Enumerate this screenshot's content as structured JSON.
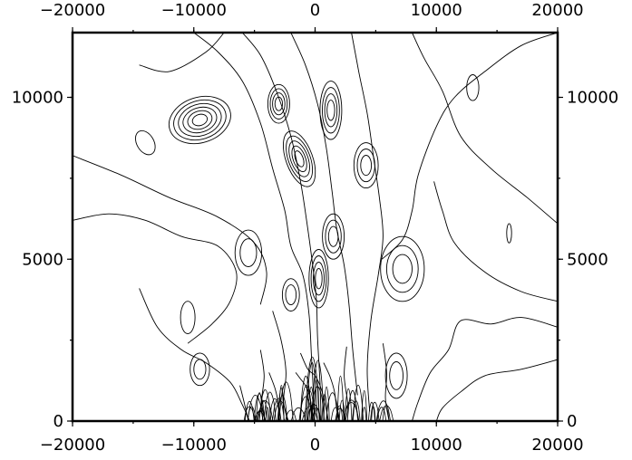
{
  "chart_data": {
    "type": "contour",
    "title": "",
    "xlabel": "",
    "ylabel": "",
    "xlim": [
      -20000,
      20000
    ],
    "ylim": [
      0,
      12000
    ],
    "grid": false,
    "line_color": "#000000",
    "frame_color": "#000000",
    "background": "#ffffff",
    "x_ticks": [
      {
        "value": -20000,
        "label": "−20000"
      },
      {
        "value": -10000,
        "label": "−10000"
      },
      {
        "value": 0,
        "label": "0"
      },
      {
        "value": 10000,
        "label": "10000"
      },
      {
        "value": 20000,
        "label": "20000"
      }
    ],
    "y_ticks": [
      {
        "value": 0,
        "label": "0"
      },
      {
        "value": 5000,
        "label": "5000"
      },
      {
        "value": 10000,
        "label": "10000"
      }
    ],
    "tick_label_sides": [
      "top",
      "bottom",
      "left",
      "right"
    ],
    "contour_features": [
      {
        "kind": "closed",
        "cx": -9500,
        "cy": 9300,
        "rx": 2600,
        "ry": 700,
        "rings": 6,
        "angle": -18
      },
      {
        "kind": "closed",
        "cx": -3000,
        "cy": 9800,
        "rx": 900,
        "ry": 600,
        "rings": 4,
        "angle": 0
      },
      {
        "kind": "closed",
        "cx": 1300,
        "cy": 9600,
        "rx": 900,
        "ry": 900,
        "rings": 4,
        "angle": 0
      },
      {
        "kind": "closed",
        "cx": -1300,
        "cy": 8100,
        "rx": 1100,
        "ry": 900,
        "rings": 5,
        "angle": -20
      },
      {
        "kind": "closed",
        "cx": 4200,
        "cy": 7900,
        "rx": 1000,
        "ry": 700,
        "rings": 3,
        "angle": 0
      },
      {
        "kind": "closed",
        "cx": 1500,
        "cy": 5700,
        "rx": 900,
        "ry": 700,
        "rings": 3,
        "angle": 0
      },
      {
        "kind": "closed",
        "cx": -5500,
        "cy": 5200,
        "rx": 1100,
        "ry": 700,
        "rings": 2,
        "angle": 0
      },
      {
        "kind": "closed",
        "cx": 7200,
        "cy": 4700,
        "rx": 1800,
        "ry": 1000,
        "rings": 3,
        "angle": 0
      },
      {
        "kind": "closed",
        "cx": 300,
        "cy": 4400,
        "rx": 800,
        "ry": 900,
        "rings": 4,
        "angle": 0
      },
      {
        "kind": "closed",
        "cx": -2000,
        "cy": 3900,
        "rx": 700,
        "ry": 500,
        "rings": 2,
        "angle": 0
      },
      {
        "kind": "closed",
        "cx": 6700,
        "cy": 1400,
        "rx": 900,
        "ry": 700,
        "rings": 2,
        "angle": 0
      },
      {
        "kind": "closed",
        "cx": -9500,
        "cy": 1600,
        "rx": 800,
        "ry": 500,
        "rings": 2,
        "angle": 0
      },
      {
        "kind": "closed",
        "cx": 16000,
        "cy": 5800,
        "rx": 200,
        "ry": 300,
        "rings": 1,
        "angle": 0
      },
      {
        "kind": "closed",
        "cx": -14000,
        "cy": 8600,
        "rx": 700,
        "ry": 400,
        "rings": 1,
        "angle": -30
      },
      {
        "kind": "closed",
        "cx": -10500,
        "cy": 3200,
        "rx": 600,
        "ry": 500,
        "rings": 1,
        "angle": 0
      },
      {
        "kind": "closed",
        "cx": 13000,
        "cy": 10300,
        "rx": 500,
        "ry": 400,
        "rings": 1,
        "angle": 0
      }
    ],
    "contour_levels": [
      {
        "pts": [
          [
            -20000,
            8200
          ],
          [
            -16000,
            7600
          ],
          [
            -12000,
            6900
          ],
          [
            -8000,
            6300
          ],
          [
            -5000,
            5500
          ],
          [
            -4000,
            4600
          ],
          [
            -4500,
            3600
          ]
        ]
      },
      {
        "pts": [
          [
            -20000,
            6200
          ],
          [
            -17000,
            6400
          ],
          [
            -14000,
            6200
          ],
          [
            -11000,
            5700
          ],
          [
            -8000,
            5400
          ],
          [
            -6500,
            4600
          ],
          [
            -7000,
            3700
          ],
          [
            -8500,
            3000
          ],
          [
            -10500,
            2400
          ]
        ]
      },
      {
        "pts": [
          [
            -14500,
            4100
          ],
          [
            -13000,
            2900
          ],
          [
            -11000,
            2200
          ],
          [
            -9000,
            1800
          ],
          [
            -7000,
            1200
          ],
          [
            -6000,
            500
          ],
          [
            -5400,
            0
          ]
        ]
      },
      {
        "pts": [
          [
            20000,
            12000
          ],
          [
            17000,
            11600
          ],
          [
            14000,
            10800
          ],
          [
            11500,
            10000
          ],
          [
            10000,
            9100
          ],
          [
            8500,
            7600
          ],
          [
            8000,
            6500
          ],
          [
            7200,
            5600
          ],
          [
            5500,
            5000
          ]
        ]
      },
      {
        "pts": [
          [
            20000,
            6100
          ],
          [
            17500,
            6900
          ],
          [
            14500,
            7800
          ],
          [
            12000,
            8800
          ],
          [
            10500,
            10200
          ],
          [
            9000,
            11200
          ],
          [
            8000,
            12000
          ]
        ]
      },
      {
        "pts": [
          [
            20000,
            3700
          ],
          [
            17000,
            4000
          ],
          [
            14000,
            4600
          ],
          [
            11500,
            5500
          ],
          [
            10500,
            6500
          ],
          [
            9800,
            7400
          ]
        ]
      },
      {
        "pts": [
          [
            20000,
            2900
          ],
          [
            17000,
            3200
          ],
          [
            14500,
            3000
          ],
          [
            12000,
            3100
          ],
          [
            11000,
            2200
          ],
          [
            9500,
            1500
          ],
          [
            8500,
            600
          ],
          [
            8000,
            0
          ]
        ]
      },
      {
        "pts": [
          [
            20000,
            1900
          ],
          [
            17000,
            1600
          ],
          [
            14000,
            1400
          ],
          [
            12000,
            900
          ],
          [
            10500,
            400
          ],
          [
            10000,
            0
          ]
        ]
      },
      {
        "pts": [
          [
            -10000,
            12000
          ],
          [
            -8000,
            11400
          ],
          [
            -6000,
            10500
          ],
          [
            -4500,
            9200
          ],
          [
            -3500,
            7800
          ],
          [
            -2500,
            6500
          ],
          [
            -2000,
            5400
          ],
          [
            -1000,
            4500
          ],
          [
            -500,
            3300
          ],
          [
            -300,
            2000
          ],
          [
            -100,
            600
          ]
        ]
      },
      {
        "pts": [
          [
            -6000,
            12000
          ],
          [
            -4500,
            11300
          ],
          [
            -3200,
            10200
          ],
          [
            -2000,
            8800
          ],
          [
            -1200,
            7400
          ],
          [
            -700,
            6200
          ],
          [
            -300,
            5100
          ],
          [
            100,
            3800
          ],
          [
            200,
            2600
          ],
          [
            400,
            1200
          ],
          [
            500,
            0
          ]
        ]
      },
      {
        "pts": [
          [
            -2000,
            12000
          ],
          [
            -800,
            11000
          ],
          [
            200,
            9800
          ],
          [
            900,
            8500
          ],
          [
            1400,
            7100
          ],
          [
            1800,
            5900
          ],
          [
            2400,
            4800
          ],
          [
            2800,
            3600
          ],
          [
            3100,
            2200
          ],
          [
            3500,
            800
          ]
        ]
      },
      {
        "pts": [
          [
            3000,
            12000
          ],
          [
            3600,
            10800
          ],
          [
            4300,
            9500
          ],
          [
            4800,
            8200
          ],
          [
            5300,
            6900
          ],
          [
            5600,
            5700
          ],
          [
            5200,
            4500
          ],
          [
            4600,
            3100
          ],
          [
            4300,
            1600
          ],
          [
            4500,
            300
          ]
        ]
      },
      {
        "pts": [
          [
            -14500,
            11000
          ],
          [
            -12000,
            10800
          ],
          [
            -9000,
            11400
          ],
          [
            -7500,
            12000
          ]
        ]
      },
      {
        "pts": [
          [
            -3500,
            3400
          ],
          [
            -2800,
            2500
          ],
          [
            -2400,
            1500
          ],
          [
            -2600,
            600
          ],
          [
            -2200,
            0
          ]
        ]
      },
      {
        "pts": [
          [
            -4500,
            2200
          ],
          [
            -4200,
            1400
          ],
          [
            -4400,
            600
          ],
          [
            -4100,
            0
          ]
        ]
      },
      {
        "pts": [
          [
            2600,
            2300
          ],
          [
            2400,
            1400
          ],
          [
            2700,
            500
          ],
          [
            2500,
            0
          ]
        ]
      },
      {
        "pts": [
          [
            5600,
            2400
          ],
          [
            5900,
            1500
          ],
          [
            5800,
            700
          ],
          [
            6100,
            0
          ]
        ]
      },
      {
        "pts": [
          [
            -6200,
            1100
          ],
          [
            -5800,
            500
          ],
          [
            -5500,
            0
          ]
        ]
      },
      {
        "pts": [
          [
            -1600,
            1500
          ],
          [
            -1200,
            1300
          ],
          [
            -800,
            1100
          ],
          [
            -400,
            700
          ],
          [
            -200,
            0
          ]
        ]
      },
      {
        "pts": [
          [
            -1200,
            2100
          ],
          [
            -600,
            1600
          ],
          [
            0,
            1400
          ],
          [
            500,
            1000
          ],
          [
            900,
            400
          ],
          [
            1100,
            0
          ]
        ]
      },
      {
        "pts": [
          [
            700,
            1800
          ],
          [
            1200,
            1400
          ],
          [
            1600,
            900
          ],
          [
            1800,
            300
          ],
          [
            2000,
            0
          ]
        ]
      },
      {
        "pts": [
          [
            -3800,
            1500
          ],
          [
            -3300,
            1000
          ],
          [
            -3000,
            500
          ],
          [
            -2800,
            0
          ]
        ]
      }
    ]
  }
}
